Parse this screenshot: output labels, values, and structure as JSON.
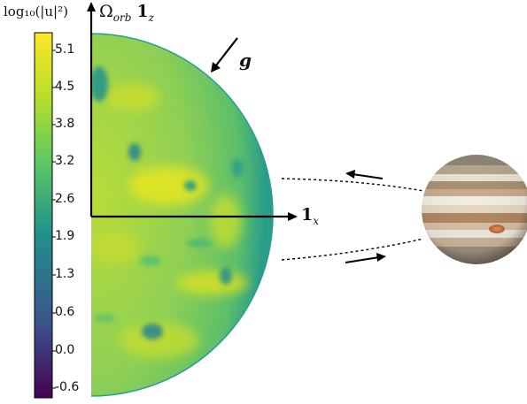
{
  "colorbar": {
    "title": "log₁₀(|u|²)",
    "ticks": [
      "5.1",
      "4.5",
      "3.8",
      "3.2",
      "2.6",
      "1.9",
      "1.3",
      "0.6",
      "0.0",
      "-0.6"
    ],
    "colors": [
      "#440154",
      "#3b528b",
      "#21918c",
      "#5ec962",
      "#b5de2b",
      "#fde725"
    ]
  },
  "axes": {
    "z_label": "Ω",
    "z_sub": "orb",
    "z_vec": "1",
    "z_vec_sub": "z",
    "x_vec": "1",
    "x_vec_sub": "x",
    "gravity_label": "g"
  },
  "planet": {
    "name": "Jupiter"
  }
}
